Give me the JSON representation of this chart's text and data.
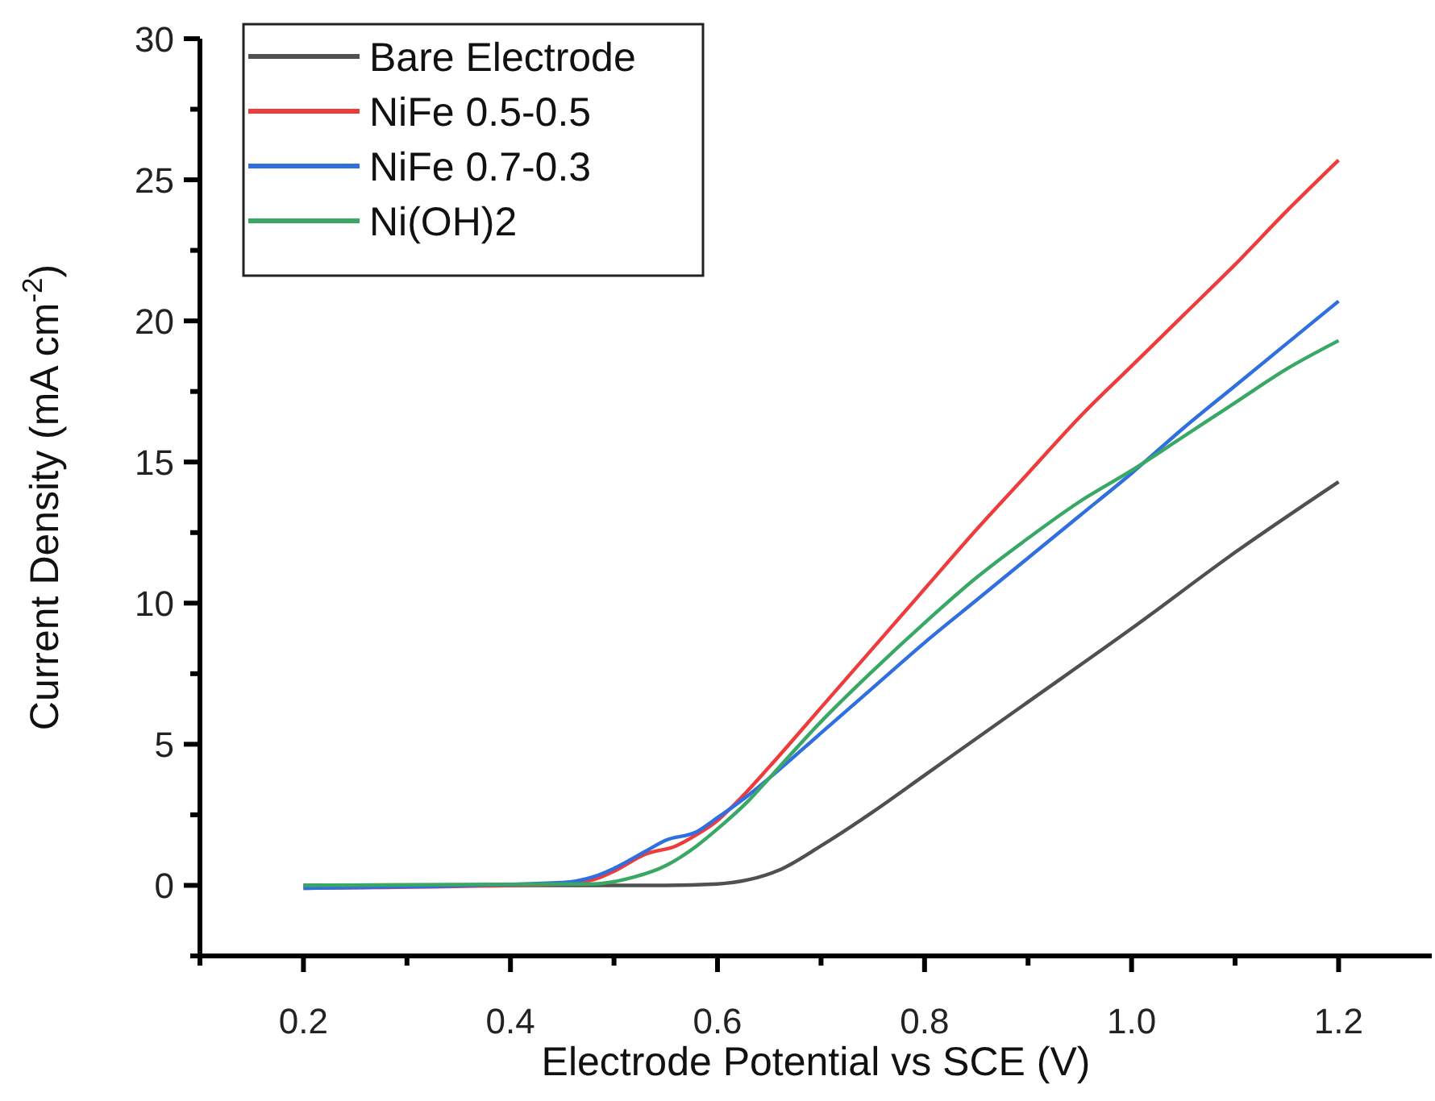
{
  "chart_data": {
    "type": "line",
    "xlabel": "Electrode Potential vs SCE (V)",
    "ylabel": "Current Density (mA cm$^{-2}$)",
    "xlim": [
      0.1,
      1.29
    ],
    "xticks": [
      0.2,
      0.4,
      0.6,
      0.8,
      {
        "value": 1.0,
        "label": "1.0"
      },
      1.2
    ],
    "ylim": [
      -2.5,
      30
    ],
    "yticks": [
      0,
      5,
      10,
      15,
      20,
      25,
      30
    ],
    "grid": false,
    "legend": "top left",
    "line_style": "solid",
    "series": [
      {
        "name": "Bare Electrode",
        "color": "#505050",
        "x": [
          0.2,
          0.55,
          0.6,
          0.63,
          0.66,
          0.7,
          0.75,
          0.8,
          0.9,
          1.0,
          1.1,
          1.2
        ],
        "values": [
          0,
          0,
          0.05,
          0.2,
          0.55,
          1.4,
          2.6,
          3.9,
          6.5,
          9.1,
          11.8,
          14.3
        ]
      },
      {
        "name": "NiFe 0.5-0.5",
        "color": "#ee3b3b",
        "x": [
          0.2,
          0.45,
          0.48,
          0.5,
          0.53,
          0.56,
          0.58,
          0.6,
          0.62,
          0.65,
          0.7,
          0.75,
          0.8,
          0.85,
          0.9,
          0.95,
          1.0,
          1.05,
          1.1,
          1.15,
          1.2
        ],
        "values": [
          -0.1,
          0.05,
          0.2,
          0.5,
          1.1,
          1.4,
          1.8,
          2.3,
          3.0,
          4.2,
          6.3,
          8.4,
          10.5,
          12.6,
          14.6,
          16.6,
          18.4,
          20.2,
          22.0,
          23.9,
          25.7
        ]
      },
      {
        "name": "NiFe 0.7-0.3",
        "color": "#2f6fe0",
        "x": [
          0.2,
          0.45,
          0.48,
          0.5,
          0.53,
          0.55,
          0.58,
          0.6,
          0.63,
          0.65,
          0.7,
          0.75,
          0.8,
          0.85,
          0.9,
          0.95,
          1.0,
          1.05,
          1.1,
          1.15,
          1.2
        ],
        "values": [
          -0.1,
          0.1,
          0.3,
          0.6,
          1.2,
          1.6,
          1.9,
          2.4,
          3.2,
          3.8,
          5.4,
          7.0,
          8.6,
          10.1,
          11.6,
          13.1,
          14.6,
          16.2,
          17.7,
          19.2,
          20.7
        ]
      },
      {
        "name": "Ni(OH)2",
        "color": "#3aa865",
        "x": [
          0.2,
          0.48,
          0.52,
          0.55,
          0.58,
          0.6,
          0.63,
          0.65,
          0.7,
          0.75,
          0.8,
          0.85,
          0.9,
          0.95,
          1.0,
          1.05,
          1.1,
          1.15,
          1.2
        ],
        "values": [
          0,
          0.05,
          0.3,
          0.7,
          1.4,
          2.0,
          3.0,
          3.8,
          5.8,
          7.6,
          9.3,
          10.9,
          12.3,
          13.6,
          14.7,
          15.9,
          17.1,
          18.3,
          19.3
        ]
      }
    ]
  }
}
